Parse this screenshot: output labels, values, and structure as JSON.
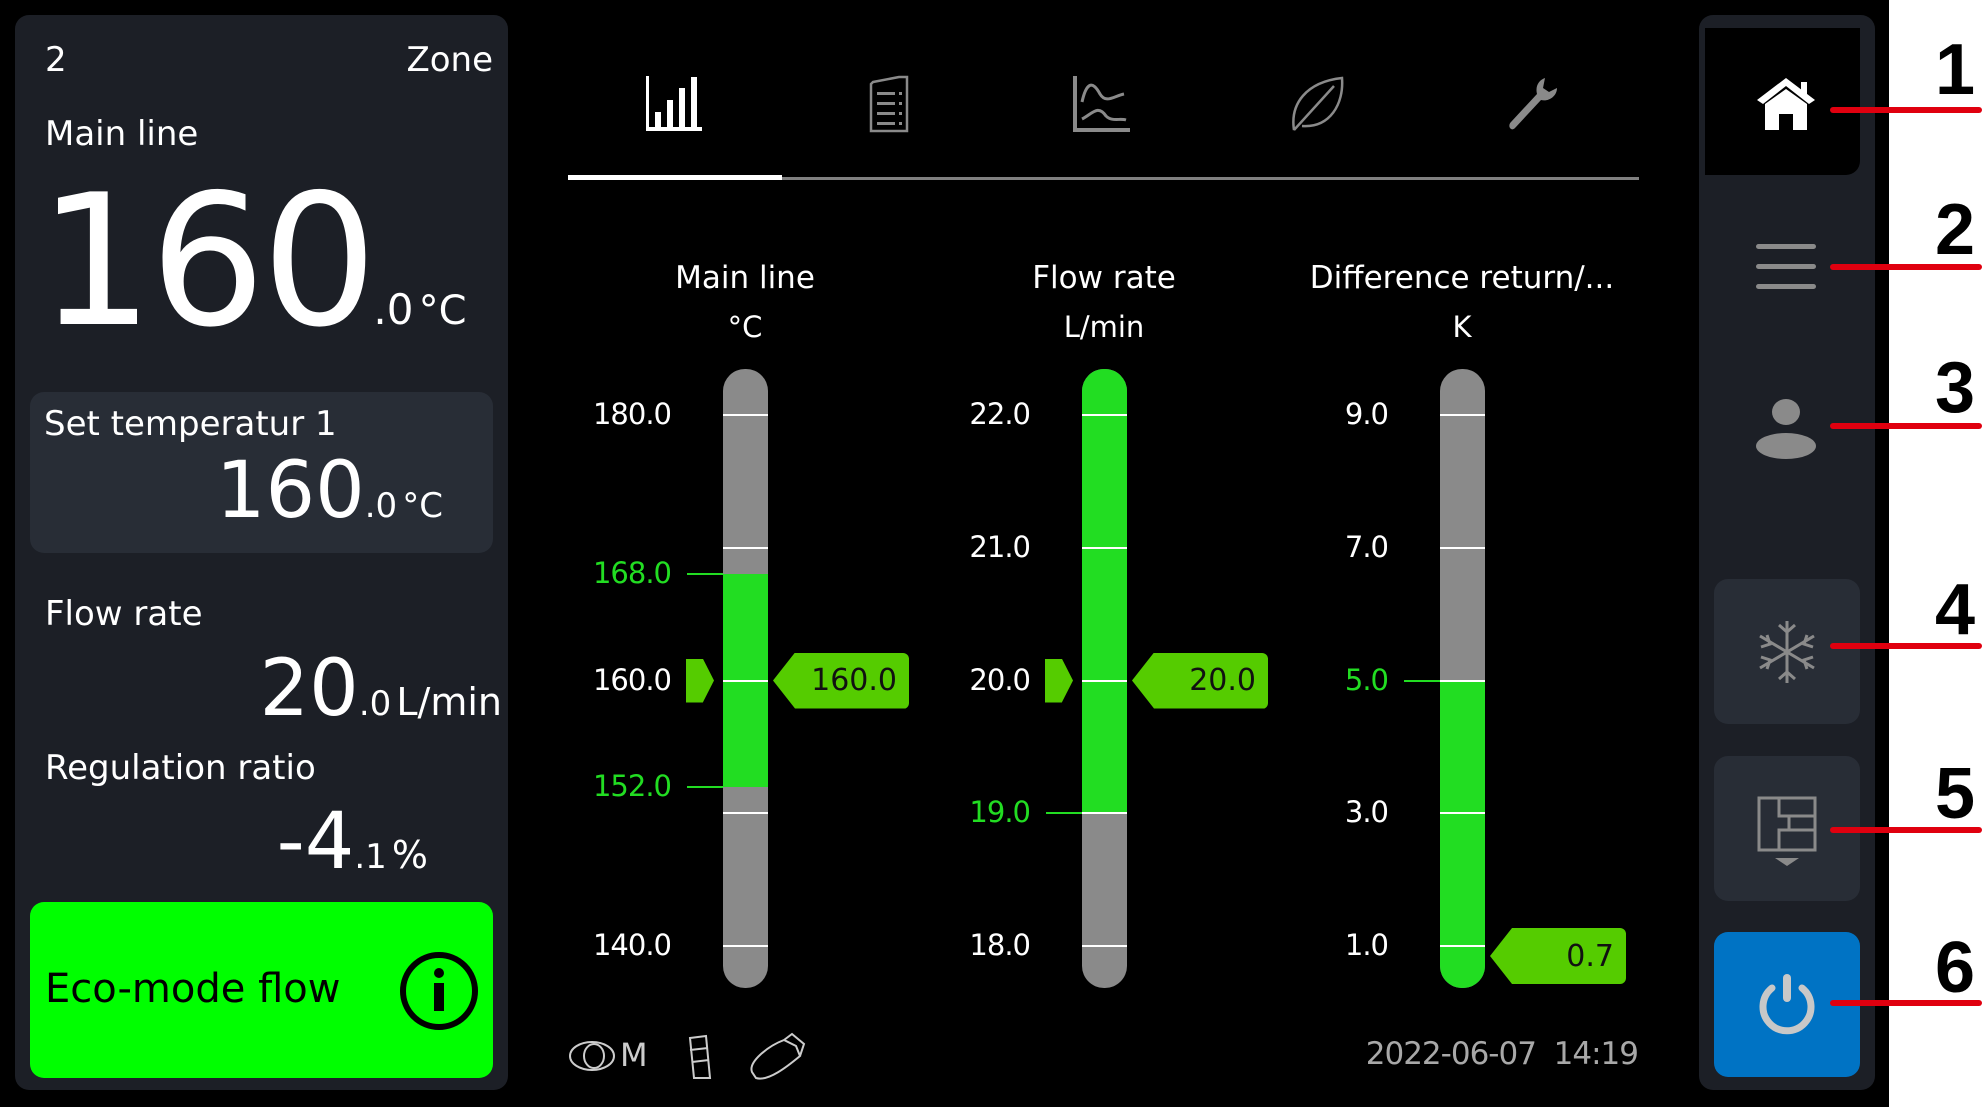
{
  "left_panel": {
    "zone_number": "2",
    "zone_label": "Zone",
    "main_line_label": "Main line",
    "main_line_value_int": "160",
    "main_line_value_dec": ".0",
    "main_line_unit": "°C",
    "set_temp_label": "Set temperatur 1",
    "set_temp_value_int": "160",
    "set_temp_value_dec": ".0",
    "set_temp_unit": "°C",
    "flow_rate_label": "Flow rate",
    "flow_rate_value_int": "20",
    "flow_rate_value_dec": ".0",
    "flow_rate_unit": "L/min",
    "regulation_label": "Regulation ratio",
    "regulation_value_int": "-4",
    "regulation_value_dec": ".1",
    "regulation_unit": "%",
    "eco_button_label": "Eco-mode flow",
    "eco_color": "#00ff00"
  },
  "tabs": [
    {
      "icon": "bar-chart-icon",
      "active": true
    },
    {
      "icon": "document-list-icon",
      "active": false
    },
    {
      "icon": "line-chart-icon",
      "active": false
    },
    {
      "icon": "leaf-icon",
      "active": false
    },
    {
      "icon": "wrench-icon",
      "active": false
    }
  ],
  "chart_data": {
    "type": "bar",
    "gauges": [
      {
        "title": "Main line",
        "unit": "°C",
        "min": 140,
        "max": 180,
        "ticks": [
          180,
          170,
          160,
          150,
          140
        ],
        "labels": [
          {
            "text": "180.0",
            "v": 180,
            "highlight": false
          },
          {
            "text": "168.0",
            "v": 168,
            "highlight": true
          },
          {
            "text": "160.0",
            "v": 160,
            "highlight": false
          },
          {
            "text": "152.0",
            "v": 152,
            "highlight": true
          },
          {
            "text": "140.0",
            "v": 140,
            "highlight": false
          }
        ],
        "tolerance_range": [
          152,
          168
        ],
        "value": 160.0,
        "value_text": "160.0",
        "setpoint": 160
      },
      {
        "title": "Flow rate",
        "unit": "L/min",
        "min": 18,
        "max": 22,
        "ticks": [
          22,
          21,
          20,
          19,
          18
        ],
        "labels": [
          {
            "text": "22.0",
            "v": 22,
            "highlight": false
          },
          {
            "text": "21.0",
            "v": 21,
            "highlight": false
          },
          {
            "text": "20.0",
            "v": 20,
            "highlight": false
          },
          {
            "text": "19.0",
            "v": 19,
            "highlight": true
          },
          {
            "text": "18.0",
            "v": 18,
            "highlight": false
          }
        ],
        "tolerance_range": [
          19,
          null
        ],
        "value": 20.0,
        "value_text": "20.0",
        "setpoint": 20
      },
      {
        "title": "Difference return/...",
        "unit": "K",
        "min": 1,
        "max": 9,
        "ticks": [
          9,
          7,
          5,
          3,
          1
        ],
        "labels": [
          {
            "text": "9.0",
            "v": 9,
            "highlight": false
          },
          {
            "text": "7.0",
            "v": 7,
            "highlight": false
          },
          {
            "text": "5.0",
            "v": 5,
            "highlight": true
          },
          {
            "text": "3.0",
            "v": 3,
            "highlight": false
          },
          {
            "text": "1.0",
            "v": 1,
            "highlight": false
          }
        ],
        "tolerance_range": [
          null,
          5
        ],
        "value": 0.7,
        "value_text": "0.7",
        "setpoint": null
      }
    ],
    "colors": {
      "in_range": "#22dd22",
      "out_of_range": "#8a8a8a",
      "marker": "#55cc00",
      "highlight_label": "#22dd22"
    }
  },
  "status_bar": {
    "icons": [
      "eye-m-icon",
      "cylinder-icon",
      "usb-stick-icon"
    ],
    "eye_mode_letter": "M",
    "date": "2022-06-07",
    "time": "14:19"
  },
  "sidebar": {
    "items": [
      {
        "icon": "home-icon",
        "callout": "1"
      },
      {
        "icon": "menu-icon",
        "callout": "2"
      },
      {
        "icon": "user-icon",
        "callout": "3"
      },
      {
        "icon": "snowflake-icon",
        "callout": "4"
      },
      {
        "icon": "mould-layout-icon",
        "callout": "5"
      },
      {
        "icon": "power-icon",
        "callout": "6"
      }
    ],
    "power_color": "#0073c4"
  }
}
